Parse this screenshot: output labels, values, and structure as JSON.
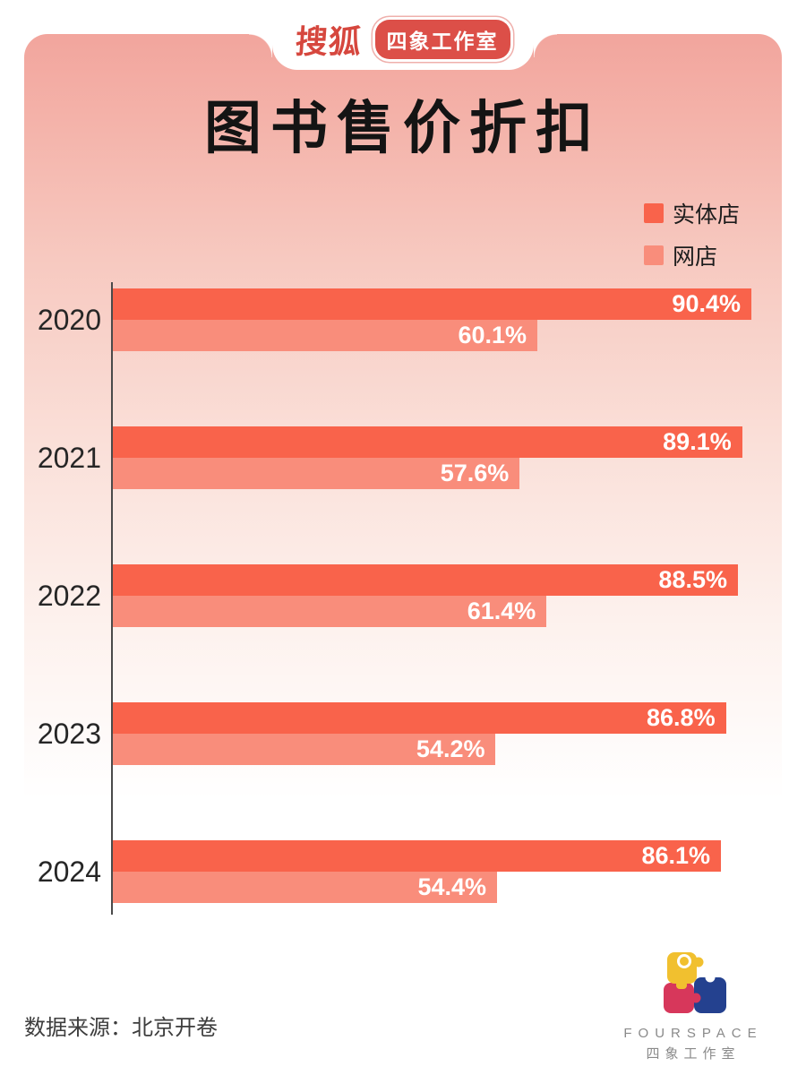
{
  "header": {
    "brand": "搜狐",
    "studio_badge": "四象工作室"
  },
  "title": "图书售价折扣",
  "legend": [
    {
      "label": "实体店",
      "color": "#F9634B"
    },
    {
      "label": "网店",
      "color": "#F98D7B"
    }
  ],
  "chart_data": {
    "type": "bar",
    "orientation": "horizontal",
    "title": "图书售价折扣",
    "categories": [
      "2020",
      "2021",
      "2022",
      "2023",
      "2024"
    ],
    "series": [
      {
        "name": "实体店",
        "color": "#F9634B",
        "values": [
          90.4,
          89.1,
          88.5,
          86.8,
          86.1
        ]
      },
      {
        "name": "网店",
        "color": "#F98D7B",
        "values": [
          60.1,
          57.6,
          61.4,
          54.2,
          54.4
        ]
      }
    ],
    "value_suffix": "%",
    "xlim": [
      0,
      95
    ],
    "grid": false,
    "legend_position": "top-right"
  },
  "footer": {
    "source": "数据来源：北京开卷",
    "logo_wordmark": "FOURSPACE",
    "logo_wordmark_cn": "四象工作室",
    "logo_colors": {
      "yellow": "#F1C02F",
      "red": "#D7375B",
      "blue": "#24418F"
    }
  }
}
